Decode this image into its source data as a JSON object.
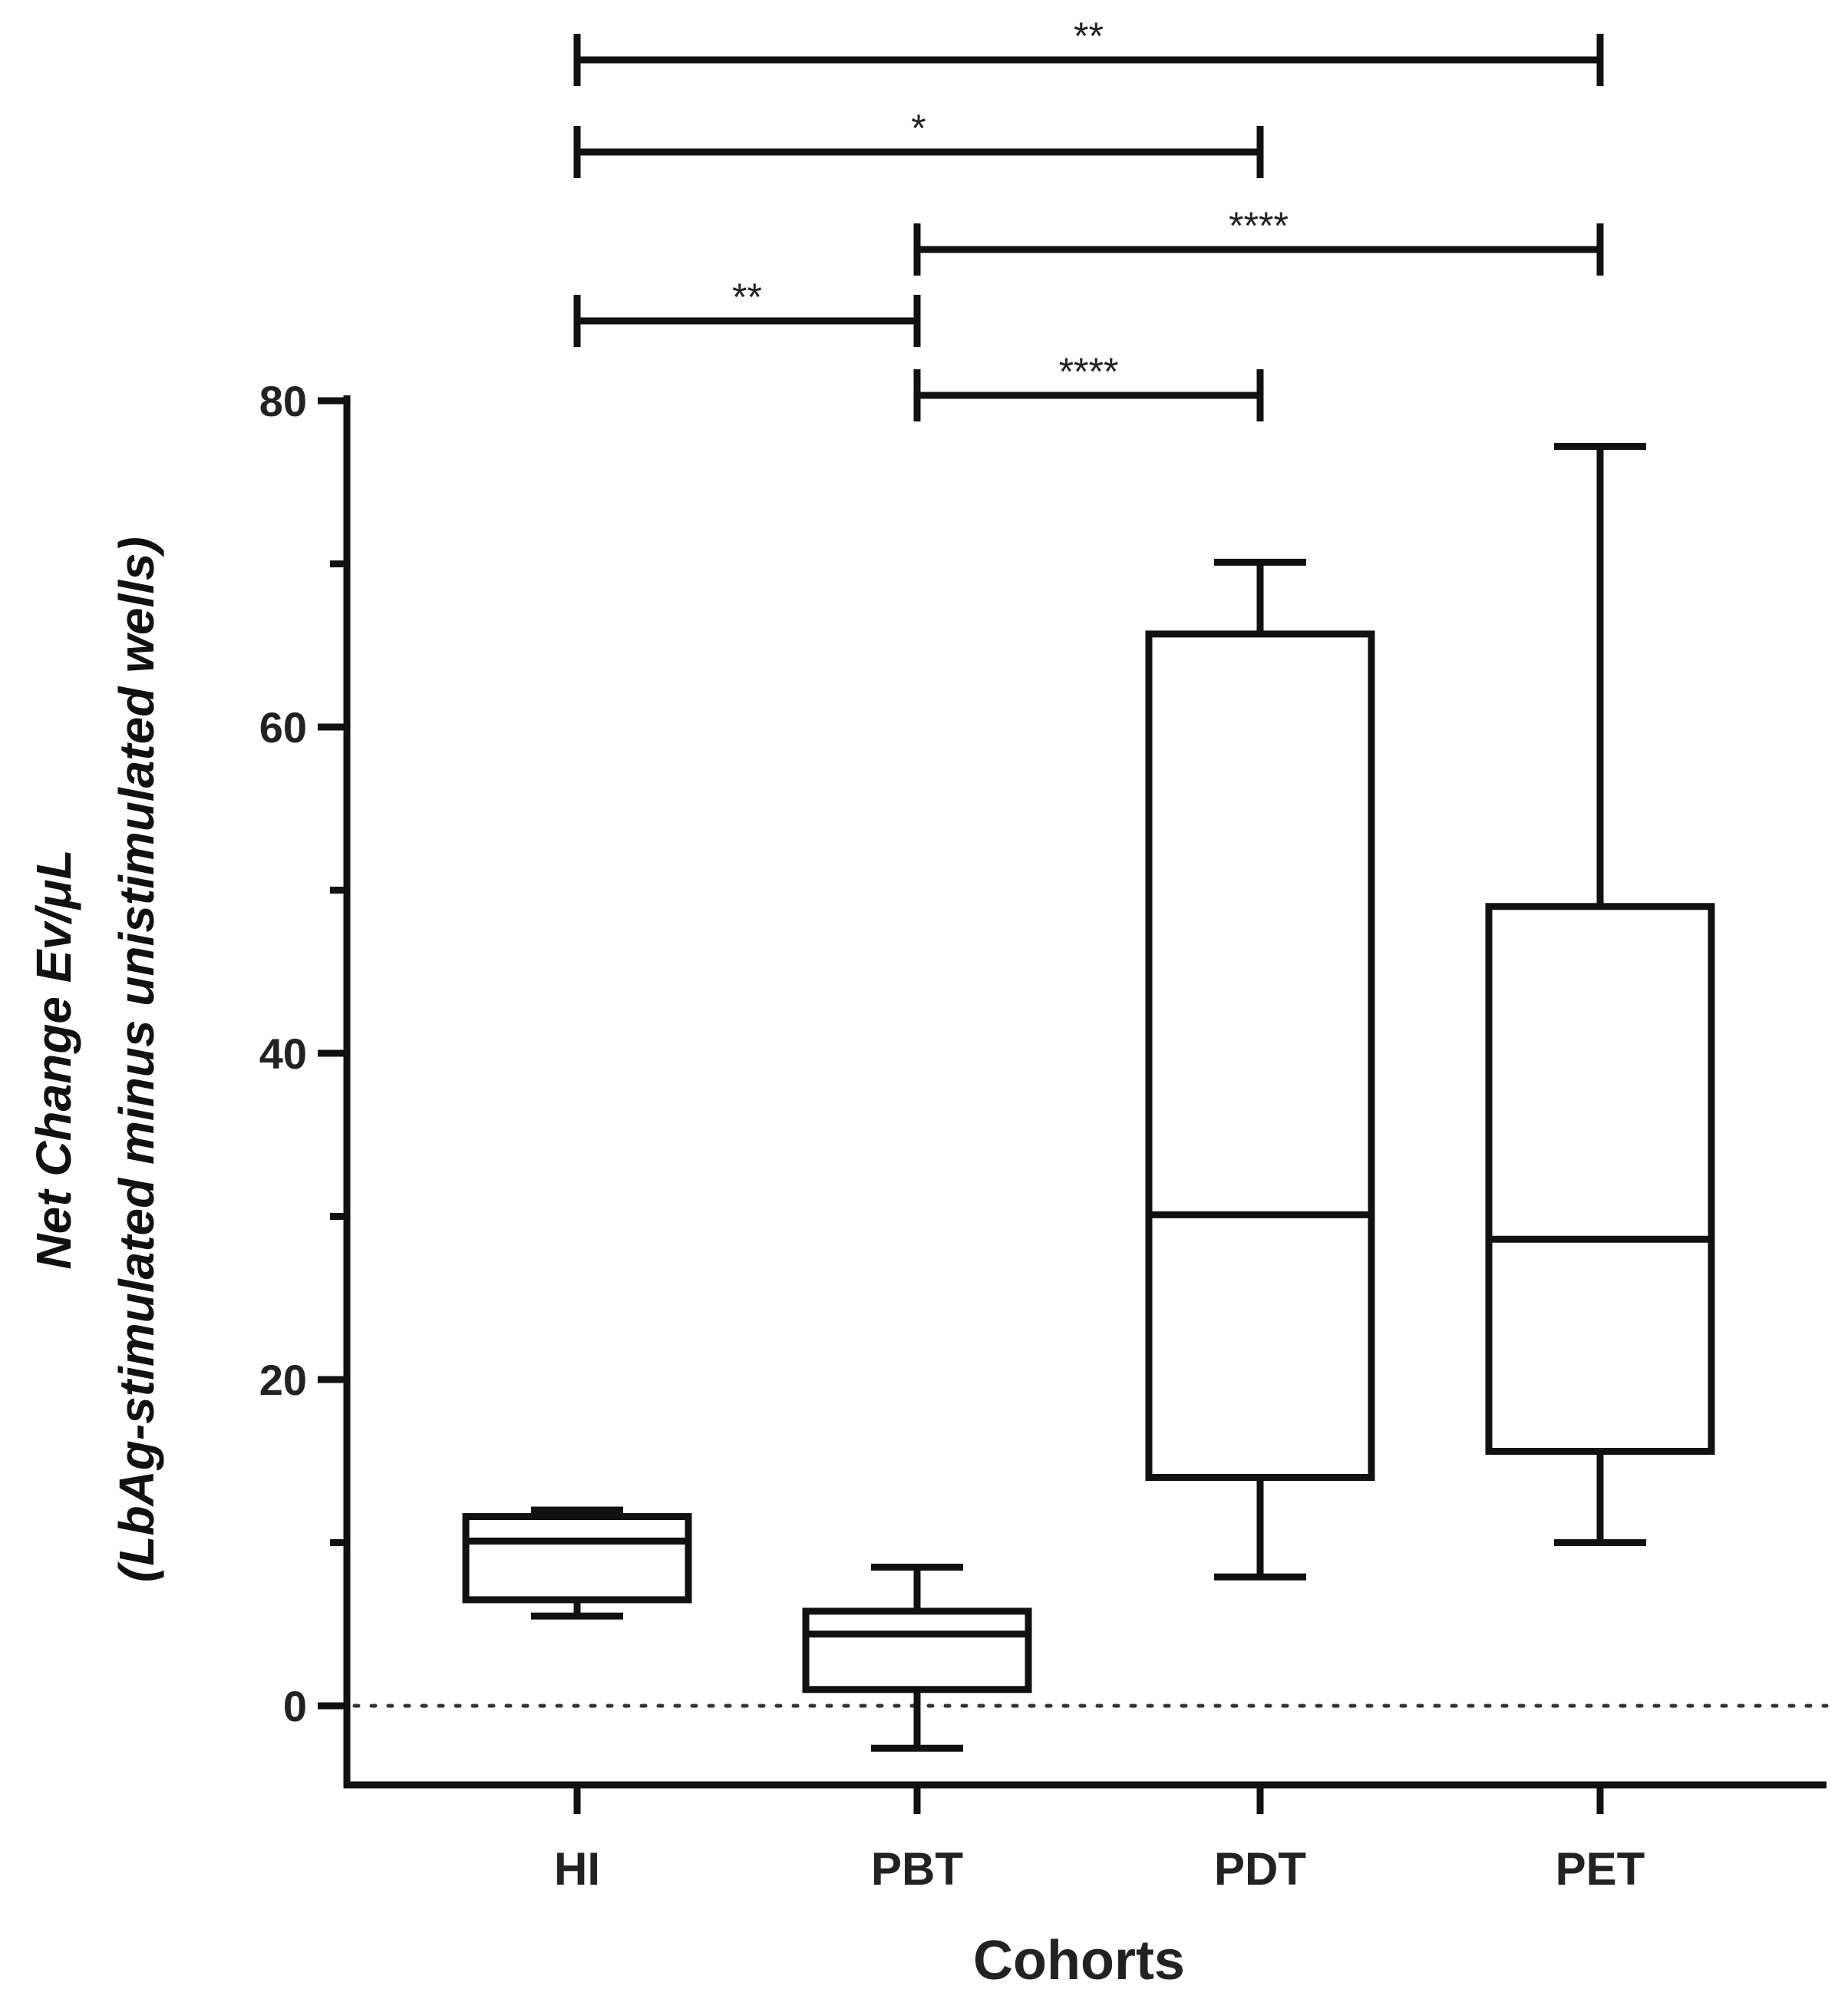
{
  "chart_data": {
    "type": "boxplot",
    "title": "",
    "xlabel": "Cohorts",
    "ylabel_line1": "Net Change Ev/μL",
    "ylabel_line2": "(LbAg-stimulated minus unistimulated wells)",
    "ylim": [
      -5,
      80
    ],
    "yticks_major": [
      0,
      20,
      40,
      60,
      80
    ],
    "yticks_minor": [
      10,
      30,
      50,
      70
    ],
    "reference_line": {
      "y": 0,
      "style": "dotted"
    },
    "categories": [
      "HI",
      "PBT",
      "PDT",
      "PET"
    ],
    "boxes": [
      {
        "name": "HI",
        "min": 5.5,
        "q1": 6.5,
        "median": 10.1,
        "q3": 11.6,
        "max": 12.0
      },
      {
        "name": "PBT",
        "min": -2.6,
        "q1": 1.0,
        "median": 4.4,
        "q3": 5.8,
        "max": 8.5
      },
      {
        "name": "PDT",
        "min": 7.9,
        "q1": 14.0,
        "median": 30.1,
        "q3": 65.7,
        "max": 70.1
      },
      {
        "name": "PET",
        "min": 10.0,
        "q1": 15.6,
        "median": 28.6,
        "q3": 49.0,
        "max": 77.2
      }
    ],
    "significance": [
      {
        "from": "HI",
        "to": "PET",
        "label": "**"
      },
      {
        "from": "HI",
        "to": "PDT",
        "label": "*"
      },
      {
        "from": "PBT",
        "to": "PET",
        "label": "****"
      },
      {
        "from": "HI",
        "to": "PBT",
        "label": "**"
      },
      {
        "from": "PBT",
        "to": "PDT",
        "label": "****"
      }
    ]
  }
}
